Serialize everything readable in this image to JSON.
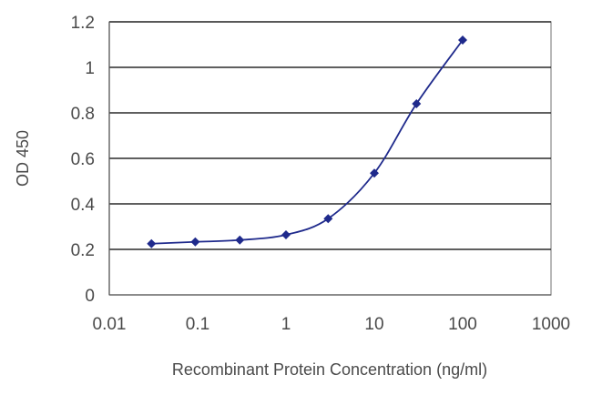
{
  "chart_data": {
    "type": "line",
    "xlabel": "Recombinant Protein Concentration (ng/ml)",
    "ylabel": "OD 450",
    "xscale": "log",
    "xlim": [
      0.01,
      1000
    ],
    "ylim": [
      0,
      1.2
    ],
    "x_tick_labels": [
      "0.01",
      "0.1",
      "1",
      "10",
      "100",
      "1000"
    ],
    "x_tick_values": [
      0.01,
      0.1,
      1,
      10,
      100,
      1000
    ],
    "y_tick_labels": [
      "0",
      "0.2",
      "0.4",
      "0.6",
      "0.8",
      "1",
      "1.2"
    ],
    "y_tick_values": [
      0,
      0.2,
      0.4,
      0.6,
      0.8,
      1.0,
      1.2
    ],
    "grid": "horizontal",
    "series": [
      {
        "x": [
          0.03,
          0.094,
          0.3,
          1,
          3,
          10,
          30,
          100
        ],
        "values": [
          0.225,
          0.233,
          0.241,
          0.264,
          0.335,
          0.535,
          0.84,
          1.12
        ]
      }
    ],
    "colors": {
      "series": "#1f2a8c",
      "marker": "#1f2a8c",
      "grid": "#2a2a2a"
    }
  }
}
